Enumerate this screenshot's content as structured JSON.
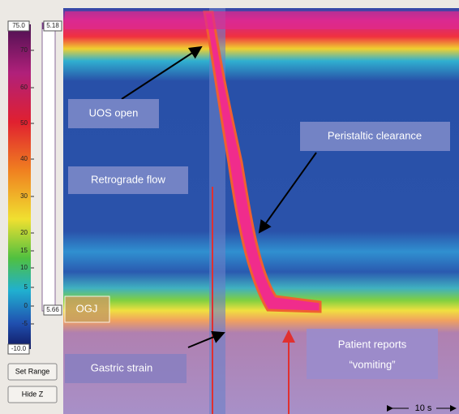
{
  "colorbar": {
    "max": "75.0",
    "min": "-10.0",
    "ticks": [
      "70",
      "60",
      "50",
      "40",
      "30",
      "20",
      "15",
      "10",
      "5",
      "0",
      "-5"
    ]
  },
  "slider": {
    "top": "5.18",
    "bottom": "5.66"
  },
  "buttons": [
    "Set Range",
    "Hide Z"
  ],
  "annotations": {
    "uos_open": "UOS open",
    "peristaltic_clearance": "Peristaltic clearance",
    "retrograde_flow": "Retrograde flow",
    "ogj": "OGJ",
    "gastric_strain": "Gastric strain",
    "patient_reports": "Patient reports",
    "vomiting": "“vomiting”"
  },
  "time_scale": "10 s"
}
